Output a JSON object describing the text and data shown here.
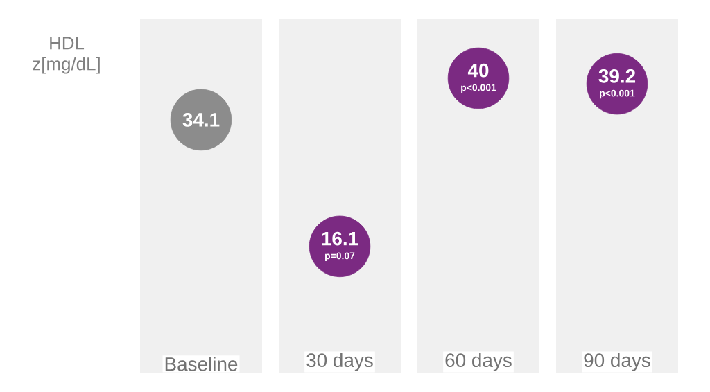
{
  "chart_data": {
    "type": "other",
    "ylabel": "HDL z[mg/dL]",
    "categories": [
      "Baseline",
      "30 days",
      "60 days",
      "90 days"
    ],
    "values": [
      34.1,
      16.1,
      40,
      39.2
    ],
    "colors": [
      "#8c8c8c",
      "#7b2a82",
      "#7b2a82",
      "#7b2a82"
    ],
    "data_labels": true,
    "annotations": [
      {
        "text": "p=0.07",
        "x": "30 days"
      },
      {
        "text": "p<0.001",
        "x": "60 days"
      },
      {
        "text": "p<0.001",
        "x": "90 days"
      }
    ]
  }
}
